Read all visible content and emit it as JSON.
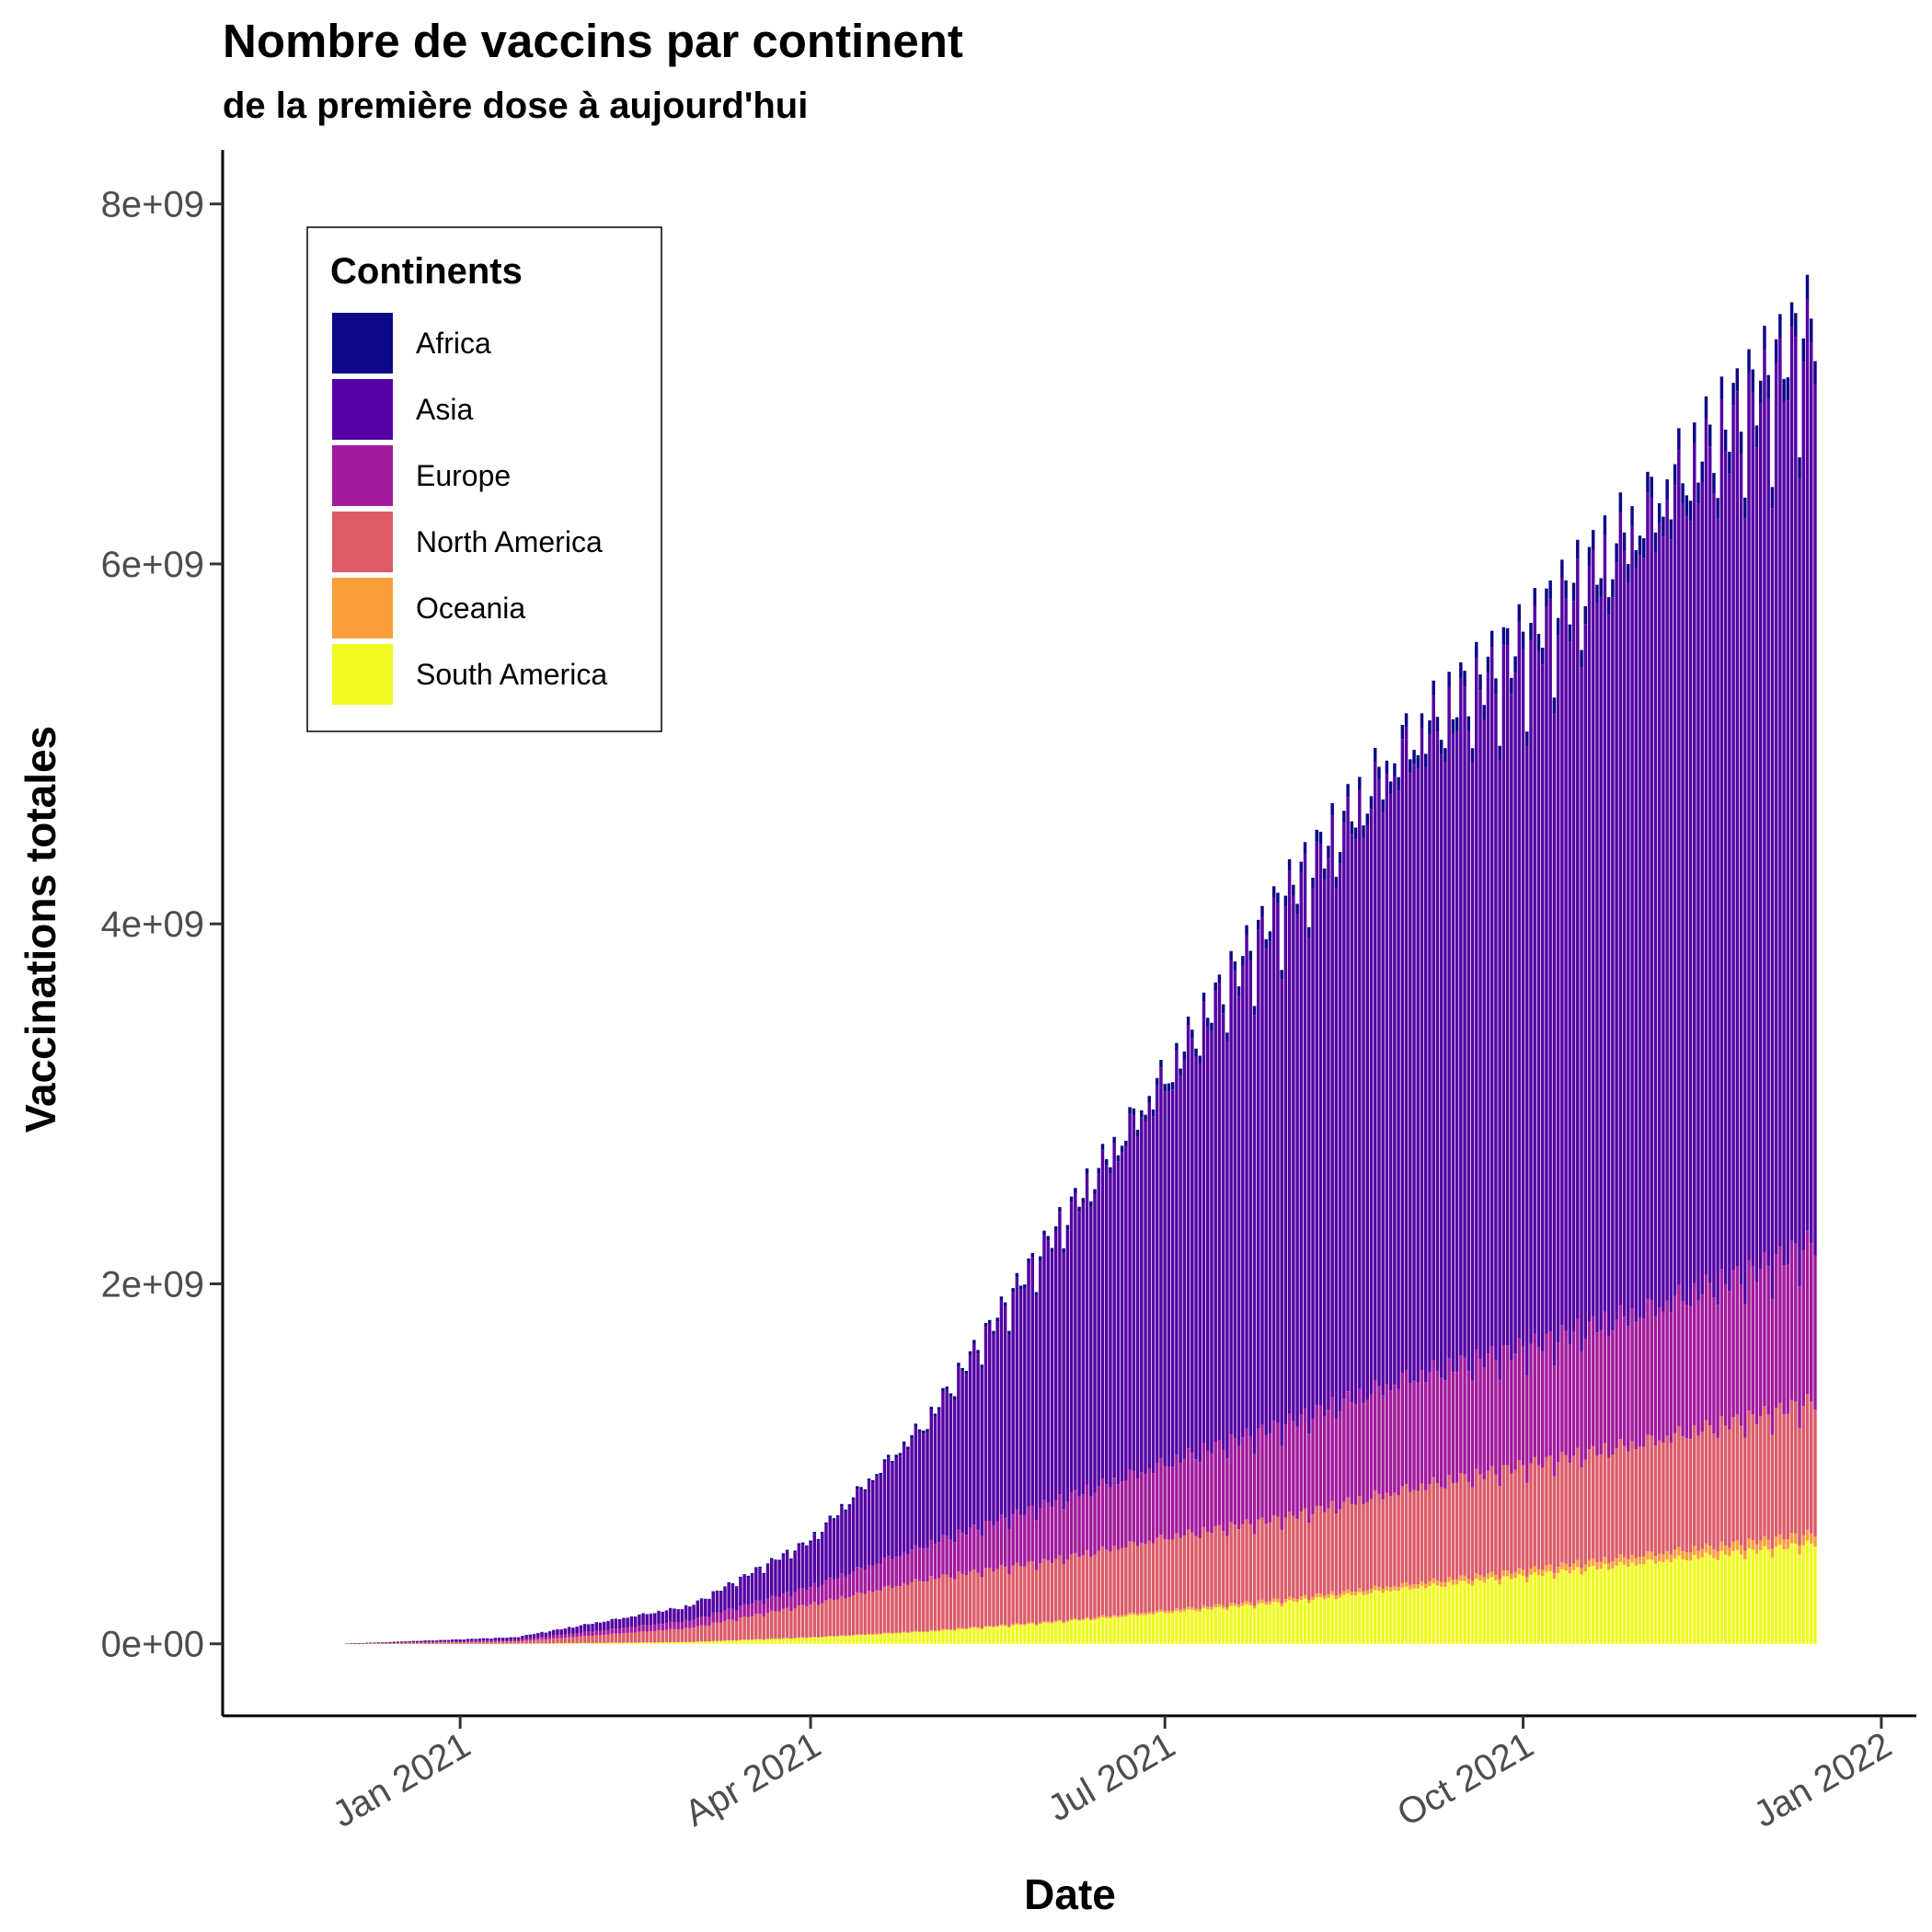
{
  "chart_data": {
    "type": "bar",
    "stacked": true,
    "title": "Nombre de vaccins par continent",
    "subtitle": "de la première dose à aujourd'hui",
    "xlabel": "Date",
    "ylabel": "Vaccinations totales",
    "x_start": "2020-12-02",
    "x_end": "2021-12-15",
    "x_ticks": [
      {
        "date": "2021-01-01",
        "label": "Jan 2021"
      },
      {
        "date": "2021-04-01",
        "label": "Apr 2021"
      },
      {
        "date": "2021-07-01",
        "label": "Jul 2021"
      },
      {
        "date": "2021-10-01",
        "label": "Oct 2021"
      },
      {
        "date": "2022-01-01",
        "label": "Jan 2022"
      }
    ],
    "xlim": [
      "2020-11-01",
      "2022-01-10"
    ],
    "y_ticks": [
      {
        "value": 0,
        "label": "0e+00"
      },
      {
        "value": 2000000000,
        "label": "2e+09"
      },
      {
        "value": 4000000000,
        "label": "4e+09"
      },
      {
        "value": 6000000000,
        "label": "6e+09"
      },
      {
        "value": 8000000000,
        "label": "8e+09"
      }
    ],
    "ylim": [
      -400000000,
      8300000000
    ],
    "grid": false,
    "legend_position": "top-left",
    "legend_title": "Continents",
    "series": [
      {
        "name": "Africa",
        "color": "#0D0887",
        "anchors": [
          [
            "2020-12-02",
            0
          ],
          [
            "2021-03-01",
            3000000
          ],
          [
            "2021-06-01",
            25000000
          ],
          [
            "2021-09-01",
            80000000
          ],
          [
            "2021-12-15",
            140000000
          ]
        ]
      },
      {
        "name": "Asia",
        "color": "#5402A3",
        "anchors": [
          [
            "2020-12-02",
            0
          ],
          [
            "2021-01-15",
            15000000
          ],
          [
            "2021-03-01",
            80000000
          ],
          [
            "2021-04-01",
            260000000
          ],
          [
            "2021-05-01",
            700000000
          ],
          [
            "2021-06-01",
            1500000000
          ],
          [
            "2021-07-01",
            2200000000
          ],
          [
            "2021-08-01",
            3000000000
          ],
          [
            "2021-09-01",
            3600000000
          ],
          [
            "2021-10-01",
            4000000000
          ],
          [
            "2021-11-01",
            4500000000
          ],
          [
            "2021-12-01",
            5000000000
          ],
          [
            "2021-12-15",
            5200000000
          ]
        ]
      },
      {
        "name": "Europe",
        "color": "#A11A9C",
        "anchors": [
          [
            "2020-12-02",
            0
          ],
          [
            "2021-01-15",
            8000000
          ],
          [
            "2021-03-01",
            45000000
          ],
          [
            "2021-04-01",
            100000000
          ],
          [
            "2021-05-01",
            200000000
          ],
          [
            "2021-06-01",
            330000000
          ],
          [
            "2021-07-01",
            430000000
          ],
          [
            "2021-08-01",
            540000000
          ],
          [
            "2021-09-01",
            640000000
          ],
          [
            "2021-10-01",
            680000000
          ],
          [
            "2021-11-01",
            760000000
          ],
          [
            "2021-12-01",
            850000000
          ],
          [
            "2021-12-15",
            920000000
          ]
        ]
      },
      {
        "name": "North America",
        "color": "#DB5C68",
        "anchors": [
          [
            "2020-12-02",
            0
          ],
          [
            "2021-01-15",
            12000000
          ],
          [
            "2021-03-01",
            80000000
          ],
          [
            "2021-04-01",
            190000000
          ],
          [
            "2021-05-01",
            300000000
          ],
          [
            "2021-06-01",
            350000000
          ],
          [
            "2021-07-01",
            420000000
          ],
          [
            "2021-08-01",
            470000000
          ],
          [
            "2021-09-01",
            550000000
          ],
          [
            "2021-10-01",
            600000000
          ],
          [
            "2021-11-01",
            650000000
          ],
          [
            "2021-12-01",
            720000000
          ],
          [
            "2021-12-15",
            760000000
          ]
        ]
      },
      {
        "name": "Oceania",
        "color": "#FA9E3B",
        "anchors": [
          [
            "2020-12-02",
            0
          ],
          [
            "2021-03-01",
            1000000
          ],
          [
            "2021-06-01",
            8000000
          ],
          [
            "2021-09-01",
            25000000
          ],
          [
            "2021-12-15",
            60000000
          ]
        ]
      },
      {
        "name": "South America",
        "color": "#F0F921",
        "anchors": [
          [
            "2020-12-02",
            0
          ],
          [
            "2021-01-15",
            1000000
          ],
          [
            "2021-03-01",
            10000000
          ],
          [
            "2021-04-01",
            35000000
          ],
          [
            "2021-05-01",
            70000000
          ],
          [
            "2021-06-01",
            120000000
          ],
          [
            "2021-07-01",
            180000000
          ],
          [
            "2021-08-01",
            240000000
          ],
          [
            "2021-09-01",
            320000000
          ],
          [
            "2021-10-01",
            390000000
          ],
          [
            "2021-11-01",
            470000000
          ],
          [
            "2021-12-01",
            540000000
          ],
          [
            "2021-12-15",
            580000000
          ]
        ]
      }
    ]
  }
}
